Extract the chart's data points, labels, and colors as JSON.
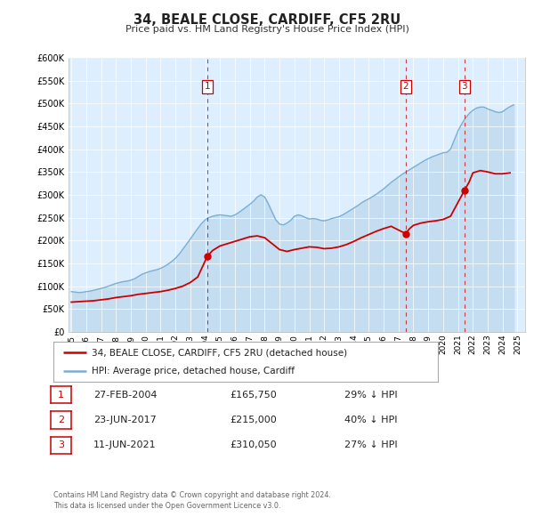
{
  "title": "34, BEALE CLOSE, CARDIFF, CF5 2RU",
  "subtitle": "Price paid vs. HM Land Registry's House Price Index (HPI)",
  "hpi_label": "HPI: Average price, detached house, Cardiff",
  "price_label": "34, BEALE CLOSE, CARDIFF, CF5 2RU (detached house)",
  "hpi_color": "#7aafd4",
  "hpi_fill_color": "#c5ddf0",
  "price_color": "#cc0000",
  "plot_bg_color": "#ddeeff",
  "fig_bg_color": "#ffffff",
  "ylim": [
    0,
    600000
  ],
  "yticks": [
    0,
    50000,
    100000,
    150000,
    200000,
    250000,
    300000,
    350000,
    400000,
    450000,
    500000,
    550000,
    600000
  ],
  "xlim_start": 1994.8,
  "xlim_end": 2025.5,
  "transactions": [
    {
      "num": 1,
      "date": "27-FEB-2004",
      "price": 165750,
      "year": 2004.15,
      "pct": "29%",
      "dir": "↓"
    },
    {
      "num": 2,
      "date": "23-JUN-2017",
      "price": 215000,
      "year": 2017.48,
      "pct": "40%",
      "dir": "↓"
    },
    {
      "num": 3,
      "date": "11-JUN-2021",
      "price": 310050,
      "year": 2021.44,
      "pct": "27%",
      "dir": "↓"
    }
  ],
  "footer": "Contains HM Land Registry data © Crown copyright and database right 2024.\nThis data is licensed under the Open Government Licence v3.0.",
  "hpi_data_years": [
    1995.0,
    1995.25,
    1995.5,
    1995.75,
    1996.0,
    1996.25,
    1996.5,
    1996.75,
    1997.0,
    1997.25,
    1997.5,
    1997.75,
    1998.0,
    1998.25,
    1998.5,
    1998.75,
    1999.0,
    1999.25,
    1999.5,
    1999.75,
    2000.0,
    2000.25,
    2000.5,
    2000.75,
    2001.0,
    2001.25,
    2001.5,
    2001.75,
    2002.0,
    2002.25,
    2002.5,
    2002.75,
    2003.0,
    2003.25,
    2003.5,
    2003.75,
    2004.0,
    2004.25,
    2004.5,
    2004.75,
    2005.0,
    2005.25,
    2005.5,
    2005.75,
    2006.0,
    2006.25,
    2006.5,
    2006.75,
    2007.0,
    2007.25,
    2007.5,
    2007.75,
    2008.0,
    2008.25,
    2008.5,
    2008.75,
    2009.0,
    2009.25,
    2009.5,
    2009.75,
    2010.0,
    2010.25,
    2010.5,
    2010.75,
    2011.0,
    2011.25,
    2011.5,
    2011.75,
    2012.0,
    2012.25,
    2012.5,
    2012.75,
    2013.0,
    2013.25,
    2013.5,
    2013.75,
    2014.0,
    2014.25,
    2014.5,
    2014.75,
    2015.0,
    2015.25,
    2015.5,
    2015.75,
    2016.0,
    2016.25,
    2016.5,
    2016.75,
    2017.0,
    2017.25,
    2017.5,
    2017.75,
    2018.0,
    2018.25,
    2018.5,
    2018.75,
    2019.0,
    2019.25,
    2019.5,
    2019.75,
    2020.0,
    2020.25,
    2020.5,
    2020.75,
    2021.0,
    2021.25,
    2021.5,
    2021.75,
    2022.0,
    2022.25,
    2022.5,
    2022.75,
    2023.0,
    2023.25,
    2023.5,
    2023.75,
    2024.0,
    2024.25,
    2024.5,
    2024.75
  ],
  "hpi_data_values": [
    88000,
    87000,
    86000,
    86500,
    88000,
    89000,
    91000,
    93000,
    95000,
    97000,
    100000,
    103000,
    106000,
    108000,
    110000,
    111000,
    113000,
    116000,
    121000,
    126000,
    129000,
    132000,
    134000,
    136000,
    139000,
    143000,
    148000,
    154000,
    161000,
    170000,
    181000,
    192000,
    203000,
    215000,
    226000,
    237000,
    245000,
    250000,
    253000,
    255000,
    256000,
    255000,
    254000,
    253000,
    256000,
    261000,
    267000,
    273000,
    279000,
    286000,
    295000,
    300000,
    295000,
    280000,
    262000,
    245000,
    236000,
    234000,
    238000,
    244000,
    253000,
    256000,
    254000,
    250000,
    247000,
    248000,
    247000,
    244000,
    243000,
    245000,
    248000,
    250000,
    252000,
    256000,
    261000,
    266000,
    271000,
    276000,
    282000,
    287000,
    291000,
    296000,
    301000,
    307000,
    313000,
    320000,
    327000,
    333000,
    339000,
    345000,
    350000,
    355000,
    360000,
    365000,
    370000,
    375000,
    379000,
    383000,
    386000,
    389000,
    392000,
    393000,
    400000,
    420000,
    440000,
    455000,
    468000,
    478000,
    485000,
    490000,
    492000,
    492000,
    488000,
    485000,
    482000,
    480000,
    482000,
    488000,
    493000,
    497000
  ],
  "price_data_years": [
    1995.0,
    1995.5,
    1996.0,
    1996.5,
    1997.0,
    1997.5,
    1998.0,
    1998.5,
    1999.0,
    1999.5,
    2000.0,
    2000.5,
    2001.0,
    2001.5,
    2002.0,
    2002.5,
    2003.0,
    2003.5,
    2004.15,
    2004.5,
    2005.0,
    2005.5,
    2006.0,
    2006.5,
    2007.0,
    2007.5,
    2008.0,
    2008.5,
    2009.0,
    2009.5,
    2010.0,
    2010.5,
    2011.0,
    2011.5,
    2012.0,
    2012.5,
    2013.0,
    2013.5,
    2014.0,
    2014.5,
    2015.0,
    2015.5,
    2016.0,
    2016.5,
    2017.48,
    2017.75,
    2018.0,
    2018.5,
    2019.0,
    2019.5,
    2020.0,
    2020.5,
    2021.44,
    2021.75,
    2022.0,
    2022.5,
    2023.0,
    2023.5,
    2024.0,
    2024.5
  ],
  "price_data_values": [
    65000,
    66000,
    67000,
    68000,
    70000,
    72000,
    75000,
    77000,
    79000,
    82000,
    84000,
    86000,
    88000,
    91000,
    95000,
    100000,
    108000,
    120000,
    165750,
    178000,
    188000,
    193000,
    198000,
    203000,
    208000,
    210000,
    206000,
    193000,
    180000,
    176000,
    180000,
    183000,
    186000,
    185000,
    182000,
    183000,
    186000,
    191000,
    198000,
    206000,
    213000,
    220000,
    226000,
    231000,
    215000,
    226000,
    233000,
    238000,
    241000,
    243000,
    246000,
    253000,
    310050,
    328000,
    348000,
    353000,
    350000,
    346000,
    346000,
    348000
  ]
}
